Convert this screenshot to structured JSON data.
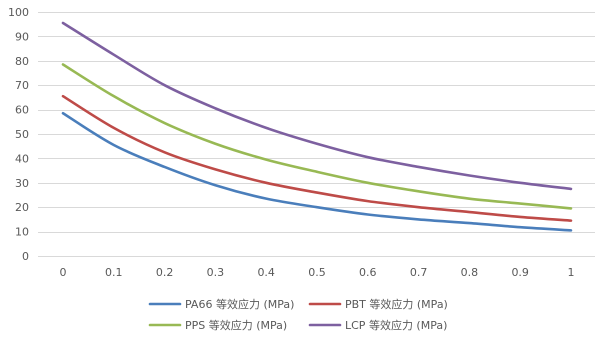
{
  "chart_data": {
    "type": "line",
    "title": "",
    "xlabel": "",
    "ylabel": "",
    "x": [
      0,
      0.1,
      0.2,
      0.3,
      0.4,
      0.5,
      0.6,
      0.7,
      0.8,
      0.9,
      1
    ],
    "x_tick_labels": [
      "0",
      "0.1",
      "0.2",
      "0.3",
      "0.4",
      "0.5",
      "0.6",
      "0.7",
      "0.8",
      "0.9",
      "1"
    ],
    "ylim": [
      0,
      100
    ],
    "y_ticks": [
      0,
      10,
      20,
      30,
      40,
      50,
      60,
      70,
      80,
      90,
      100
    ],
    "y_tick_labels": [
      "0",
      "10",
      "20",
      "30",
      "40",
      "50",
      "60",
      "70",
      "80",
      "90",
      "100"
    ],
    "grid": true,
    "legend_position": "bottom",
    "series": [
      {
        "name": "PA66 等效应力 (MPa)",
        "color": "#4a7ebb",
        "values": [
          58.5,
          45.5,
          36.5,
          29.0,
          23.5,
          20.0,
          17.0,
          15.0,
          13.5,
          11.8,
          10.5
        ]
      },
      {
        "name": "PBT 等效应力 (MPa)",
        "color": "#be4b48",
        "values": [
          65.5,
          52.5,
          42.5,
          35.5,
          30.0,
          26.0,
          22.5,
          20.0,
          18.0,
          16.0,
          14.5
        ]
      },
      {
        "name": "PPS 等效应力 (MPa)",
        "color": "#98b954",
        "values": [
          78.5,
          65.5,
          54.5,
          46.0,
          39.5,
          34.5,
          30.0,
          26.5,
          23.5,
          21.5,
          19.5
        ]
      },
      {
        "name": "LCP 等效应力 (MPa)",
        "color": "#7d60a0",
        "values": [
          95.5,
          82.5,
          70.0,
          60.5,
          52.5,
          46.0,
          40.5,
          36.5,
          33.0,
          30.0,
          27.5
        ]
      }
    ]
  }
}
